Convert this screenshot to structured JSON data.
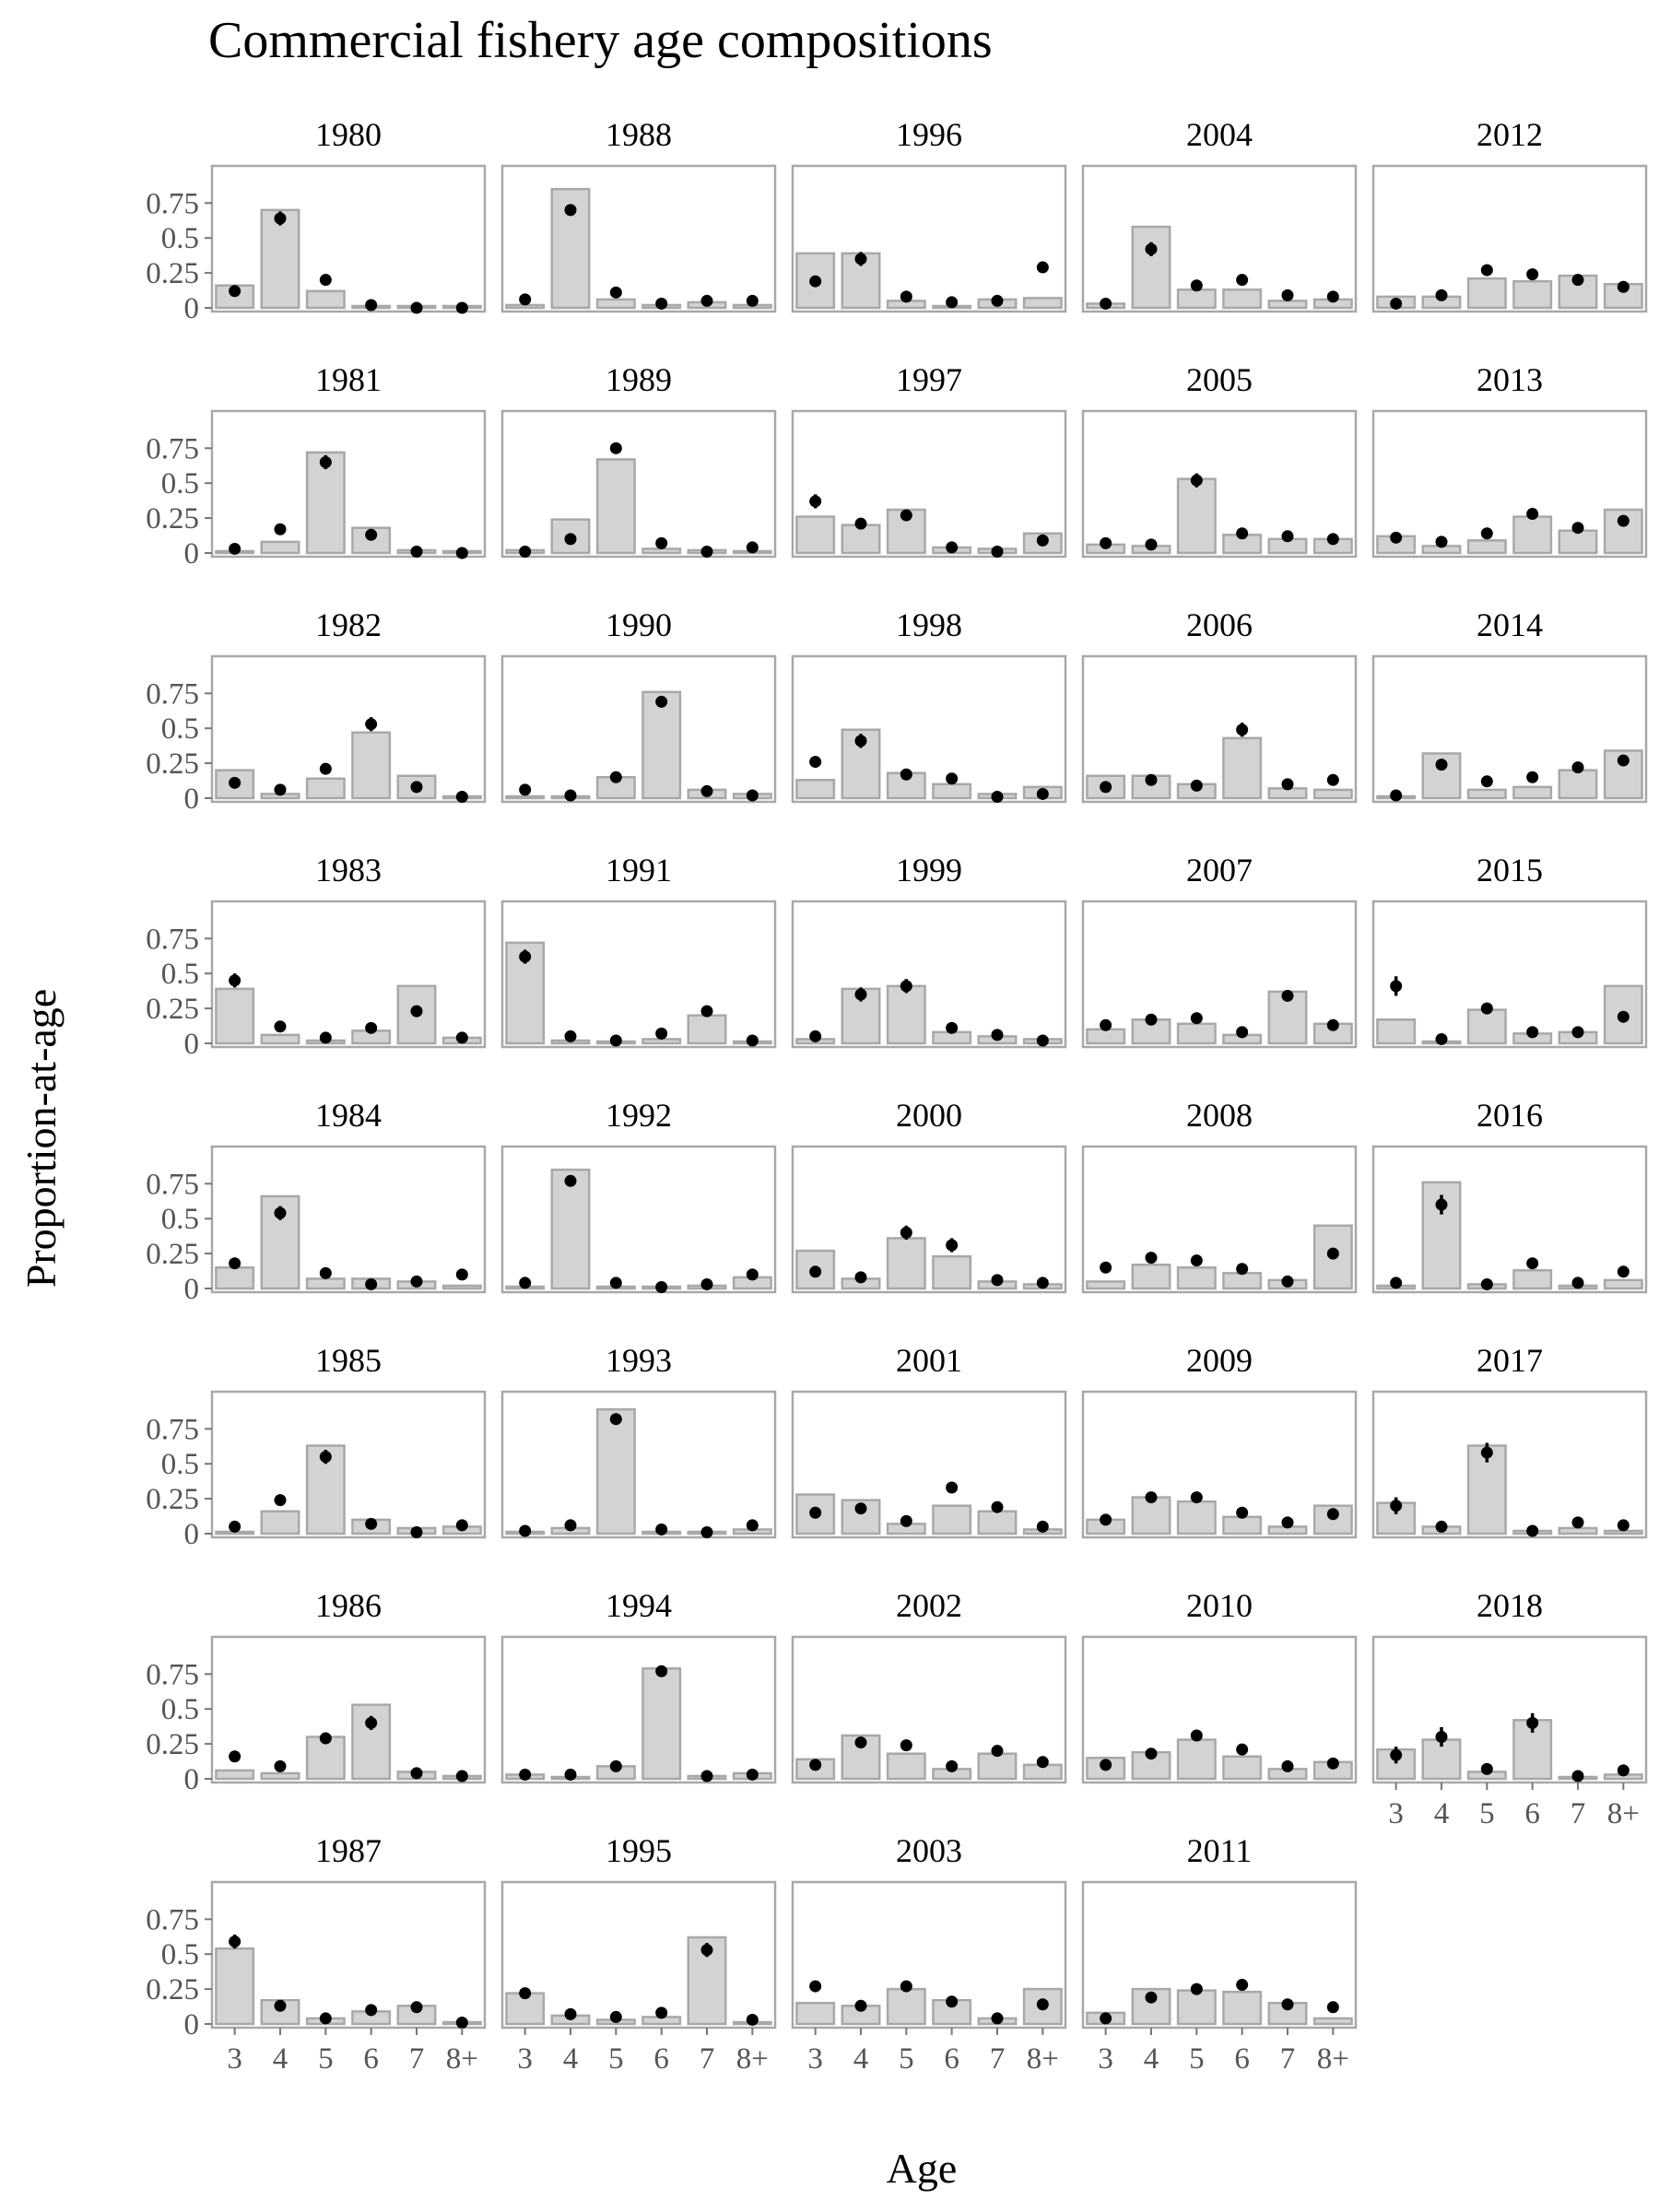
{
  "colors": {
    "bar_fill": "#d3d3d3",
    "bar_stroke": "#a8a8a8",
    "point": "#000000",
    "panel_border": "#a8a8a8"
  },
  "chart_data": {
    "type": "bar",
    "title": "Commercial fishery age compositions",
    "xlabel": "Age",
    "ylabel": "Proportion-at-age",
    "categories": [
      "3",
      "4",
      "5",
      "6",
      "7",
      "8+"
    ],
    "ylim": [
      0,
      0.95
    ],
    "yticks": [
      0,
      0.25,
      0.5,
      0.75
    ],
    "ytick_labels": [
      "0",
      "0.25",
      "0.5",
      "0.75"
    ],
    "grid": false,
    "series_description": [
      "bars",
      "points with error bars"
    ],
    "panels": [
      {
        "year": "1980",
        "bars": [
          0.16,
          0.7,
          0.12,
          0.01,
          0.01,
          0.01
        ],
        "points": [
          0.12,
          0.64,
          0.2,
          0.02,
          0.0,
          0.0
        ],
        "err": [
          0.01,
          0.04,
          0.03,
          0.01,
          0.0,
          0.0
        ]
      },
      {
        "year": "1981",
        "bars": [
          0.01,
          0.08,
          0.72,
          0.18,
          0.02,
          0.01
        ],
        "points": [
          0.03,
          0.17,
          0.65,
          0.13,
          0.01,
          0.0
        ],
        "err": [
          0.01,
          0.02,
          0.04,
          0.02,
          0.0,
          0.0
        ]
      },
      {
        "year": "1982",
        "bars": [
          0.2,
          0.03,
          0.14,
          0.47,
          0.16,
          0.01
        ],
        "points": [
          0.11,
          0.06,
          0.21,
          0.53,
          0.08,
          0.01
        ],
        "err": [
          0.01,
          0.01,
          0.03,
          0.04,
          0.01,
          0.0
        ]
      },
      {
        "year": "1983",
        "bars": [
          0.39,
          0.06,
          0.02,
          0.09,
          0.41,
          0.04
        ],
        "points": [
          0.45,
          0.12,
          0.04,
          0.11,
          0.23,
          0.04
        ],
        "err": [
          0.04,
          0.02,
          0.01,
          0.01,
          0.03,
          0.01
        ]
      },
      {
        "year": "1984",
        "bars": [
          0.15,
          0.66,
          0.07,
          0.07,
          0.05,
          0.02
        ],
        "points": [
          0.18,
          0.54,
          0.11,
          0.03,
          0.05,
          0.1
        ],
        "err": [
          0.02,
          0.04,
          0.01,
          0.01,
          0.01,
          0.01
        ]
      },
      {
        "year": "1985",
        "bars": [
          0.01,
          0.16,
          0.63,
          0.1,
          0.04,
          0.05
        ],
        "points": [
          0.05,
          0.24,
          0.55,
          0.07,
          0.01,
          0.06
        ],
        "err": [
          0.01,
          0.03,
          0.04,
          0.01,
          0.0,
          0.01
        ]
      },
      {
        "year": "1986",
        "bars": [
          0.06,
          0.04,
          0.3,
          0.53,
          0.05,
          0.02
        ],
        "points": [
          0.16,
          0.09,
          0.29,
          0.4,
          0.04,
          0.02
        ],
        "err": [
          0.02,
          0.01,
          0.03,
          0.04,
          0.01,
          0.0
        ]
      },
      {
        "year": "1987",
        "bars": [
          0.54,
          0.17,
          0.04,
          0.09,
          0.13,
          0.01
        ],
        "points": [
          0.59,
          0.13,
          0.04,
          0.1,
          0.12,
          0.01
        ],
        "err": [
          0.04,
          0.02,
          0.01,
          0.01,
          0.01,
          0.0
        ]
      },
      {
        "year": "1988",
        "bars": [
          0.02,
          0.85,
          0.06,
          0.02,
          0.04,
          0.02
        ],
        "points": [
          0.06,
          0.7,
          0.11,
          0.03,
          0.05,
          0.05
        ],
        "err": [
          0.01,
          0.03,
          0.01,
          0.0,
          0.01,
          0.01
        ]
      },
      {
        "year": "1989",
        "bars": [
          0.02,
          0.24,
          0.67,
          0.03,
          0.02,
          0.01
        ],
        "points": [
          0.01,
          0.1,
          0.75,
          0.07,
          0.01,
          0.04
        ],
        "err": [
          0.0,
          0.01,
          0.03,
          0.01,
          0.0,
          0.01
        ]
      },
      {
        "year": "1990",
        "bars": [
          0.01,
          0.01,
          0.15,
          0.76,
          0.06,
          0.03
        ],
        "points": [
          0.06,
          0.02,
          0.15,
          0.69,
          0.05,
          0.02
        ],
        "err": [
          0.01,
          0.0,
          0.02,
          0.03,
          0.01,
          0.0
        ]
      },
      {
        "year": "1991",
        "bars": [
          0.72,
          0.02,
          0.01,
          0.03,
          0.2,
          0.01
        ],
        "points": [
          0.62,
          0.05,
          0.02,
          0.07,
          0.23,
          0.02
        ],
        "err": [
          0.04,
          0.01,
          0.0,
          0.01,
          0.02,
          0.0
        ]
      },
      {
        "year": "1992",
        "bars": [
          0.01,
          0.85,
          0.01,
          0.01,
          0.02,
          0.08
        ],
        "points": [
          0.04,
          0.77,
          0.04,
          0.01,
          0.03,
          0.1
        ],
        "err": [
          0.01,
          0.02,
          0.01,
          0.0,
          0.0,
          0.01
        ]
      },
      {
        "year": "1993",
        "bars": [
          0.01,
          0.04,
          0.89,
          0.01,
          0.01,
          0.03
        ],
        "points": [
          0.02,
          0.06,
          0.82,
          0.03,
          0.01,
          0.06
        ],
        "err": [
          0.0,
          0.01,
          0.02,
          0.0,
          0.0,
          0.01
        ]
      },
      {
        "year": "1994",
        "bars": [
          0.03,
          0.01,
          0.09,
          0.79,
          0.02,
          0.04
        ],
        "points": [
          0.03,
          0.03,
          0.09,
          0.77,
          0.02,
          0.03
        ],
        "err": [
          0.0,
          0.0,
          0.01,
          0.02,
          0.0,
          0.0
        ]
      },
      {
        "year": "1995",
        "bars": [
          0.22,
          0.06,
          0.03,
          0.05,
          0.62,
          0.01
        ],
        "points": [
          0.22,
          0.07,
          0.05,
          0.08,
          0.53,
          0.03
        ],
        "err": [
          0.03,
          0.01,
          0.01,
          0.01,
          0.04,
          0.0
        ]
      },
      {
        "year": "1996",
        "bars": [
          0.39,
          0.39,
          0.05,
          0.01,
          0.06,
          0.07
        ],
        "points": [
          0.19,
          0.35,
          0.08,
          0.04,
          0.05,
          0.29
        ],
        "err": [
          0.03,
          0.04,
          0.01,
          0.01,
          0.01,
          0.03
        ]
      },
      {
        "year": "1997",
        "bars": [
          0.26,
          0.2,
          0.31,
          0.04,
          0.03,
          0.14
        ],
        "points": [
          0.37,
          0.21,
          0.27,
          0.04,
          0.01,
          0.09
        ],
        "err": [
          0.04,
          0.02,
          0.03,
          0.01,
          0.0,
          0.01
        ]
      },
      {
        "year": "1998",
        "bars": [
          0.13,
          0.49,
          0.18,
          0.1,
          0.03,
          0.08
        ],
        "points": [
          0.26,
          0.41,
          0.17,
          0.14,
          0.01,
          0.03
        ],
        "err": [
          0.03,
          0.04,
          0.01,
          0.01,
          0.0,
          0.0
        ]
      },
      {
        "year": "1999",
        "bars": [
          0.03,
          0.39,
          0.41,
          0.08,
          0.05,
          0.03
        ],
        "points": [
          0.05,
          0.35,
          0.41,
          0.11,
          0.06,
          0.02
        ],
        "err": [
          0.01,
          0.04,
          0.04,
          0.01,
          0.01,
          0.0
        ]
      },
      {
        "year": "2000",
        "bars": [
          0.27,
          0.07,
          0.36,
          0.23,
          0.05,
          0.03
        ],
        "points": [
          0.12,
          0.08,
          0.4,
          0.31,
          0.06,
          0.04
        ],
        "err": [
          0.02,
          0.01,
          0.04,
          0.04,
          0.01,
          0.01
        ]
      },
      {
        "year": "2001",
        "bars": [
          0.28,
          0.24,
          0.07,
          0.2,
          0.16,
          0.03
        ],
        "points": [
          0.15,
          0.18,
          0.09,
          0.33,
          0.19,
          0.05
        ],
        "err": [
          0.02,
          0.02,
          0.01,
          0.03,
          0.02,
          0.01
        ]
      },
      {
        "year": "2002",
        "bars": [
          0.14,
          0.31,
          0.18,
          0.07,
          0.18,
          0.1
        ],
        "points": [
          0.1,
          0.26,
          0.24,
          0.09,
          0.2,
          0.12
        ],
        "err": [
          0.01,
          0.03,
          0.03,
          0.01,
          0.02,
          0.01
        ]
      },
      {
        "year": "2003",
        "bars": [
          0.15,
          0.13,
          0.25,
          0.17,
          0.04,
          0.25
        ],
        "points": [
          0.27,
          0.13,
          0.27,
          0.16,
          0.04,
          0.14
        ],
        "err": [
          0.03,
          0.01,
          0.03,
          0.01,
          0.0,
          0.02
        ]
      },
      {
        "year": "2004",
        "bars": [
          0.03,
          0.58,
          0.13,
          0.13,
          0.05,
          0.06
        ],
        "points": [
          0.03,
          0.42,
          0.16,
          0.2,
          0.09,
          0.08
        ],
        "err": [
          0.0,
          0.04,
          0.01,
          0.01,
          0.01,
          0.01
        ]
      },
      {
        "year": "2005",
        "bars": [
          0.06,
          0.05,
          0.53,
          0.13,
          0.1,
          0.1
        ],
        "points": [
          0.07,
          0.06,
          0.52,
          0.14,
          0.12,
          0.1
        ],
        "err": [
          0.01,
          0.01,
          0.04,
          0.01,
          0.01,
          0.01
        ]
      },
      {
        "year": "2006",
        "bars": [
          0.16,
          0.16,
          0.1,
          0.43,
          0.07,
          0.06
        ],
        "points": [
          0.08,
          0.13,
          0.09,
          0.49,
          0.1,
          0.13
        ],
        "err": [
          0.01,
          0.01,
          0.01,
          0.04,
          0.01,
          0.01
        ]
      },
      {
        "year": "2007",
        "bars": [
          0.1,
          0.17,
          0.14,
          0.06,
          0.37,
          0.14
        ],
        "points": [
          0.13,
          0.17,
          0.18,
          0.08,
          0.34,
          0.13
        ],
        "err": [
          0.01,
          0.01,
          0.01,
          0.01,
          0.03,
          0.01
        ]
      },
      {
        "year": "2008",
        "bars": [
          0.05,
          0.17,
          0.15,
          0.11,
          0.06,
          0.45
        ],
        "points": [
          0.15,
          0.22,
          0.2,
          0.14,
          0.05,
          0.25
        ],
        "err": [
          0.01,
          0.02,
          0.02,
          0.01,
          0.01,
          0.02
        ]
      },
      {
        "year": "2009",
        "bars": [
          0.1,
          0.26,
          0.23,
          0.12,
          0.05,
          0.2
        ],
        "points": [
          0.1,
          0.26,
          0.26,
          0.15,
          0.08,
          0.14
        ],
        "err": [
          0.01,
          0.03,
          0.03,
          0.01,
          0.01,
          0.01
        ]
      },
      {
        "year": "2010",
        "bars": [
          0.15,
          0.19,
          0.28,
          0.16,
          0.07,
          0.12
        ],
        "points": [
          0.1,
          0.18,
          0.31,
          0.21,
          0.09,
          0.11
        ],
        "err": [
          0.01,
          0.02,
          0.03,
          0.02,
          0.01,
          0.01
        ]
      },
      {
        "year": "2011",
        "bars": [
          0.08,
          0.25,
          0.24,
          0.23,
          0.15,
          0.04
        ],
        "points": [
          0.04,
          0.19,
          0.25,
          0.28,
          0.14,
          0.12
        ],
        "err": [
          0.0,
          0.02,
          0.03,
          0.03,
          0.01,
          0.01
        ]
      },
      {
        "year": "2012",
        "bars": [
          0.08,
          0.08,
          0.21,
          0.19,
          0.23,
          0.17
        ],
        "points": [
          0.03,
          0.09,
          0.27,
          0.24,
          0.2,
          0.15
        ],
        "err": [
          0.0,
          0.01,
          0.03,
          0.03,
          0.02,
          0.01
        ]
      },
      {
        "year": "2013",
        "bars": [
          0.12,
          0.05,
          0.09,
          0.26,
          0.16,
          0.31
        ],
        "points": [
          0.11,
          0.08,
          0.14,
          0.28,
          0.18,
          0.23
        ],
        "err": [
          0.01,
          0.01,
          0.01,
          0.03,
          0.01,
          0.02
        ]
      },
      {
        "year": "2014",
        "bars": [
          0.01,
          0.32,
          0.06,
          0.08,
          0.2,
          0.34
        ],
        "points": [
          0.02,
          0.24,
          0.12,
          0.15,
          0.22,
          0.27
        ],
        "err": [
          0.0,
          0.03,
          0.01,
          0.01,
          0.02,
          0.03
        ]
      },
      {
        "year": "2015",
        "bars": [
          0.17,
          0.01,
          0.24,
          0.07,
          0.08,
          0.41
        ],
        "points": [
          0.41,
          0.03,
          0.25,
          0.08,
          0.08,
          0.19
        ],
        "err": [
          0.06,
          0.0,
          0.03,
          0.01,
          0.01,
          0.02
        ]
      },
      {
        "year": "2016",
        "bars": [
          0.02,
          0.76,
          0.03,
          0.13,
          0.02,
          0.06
        ],
        "points": [
          0.04,
          0.6,
          0.03,
          0.18,
          0.04,
          0.12
        ],
        "err": [
          0.0,
          0.06,
          0.0,
          0.02,
          0.0,
          0.01
        ]
      },
      {
        "year": "2017",
        "bars": [
          0.22,
          0.05,
          0.63,
          0.02,
          0.04,
          0.02
        ],
        "points": [
          0.2,
          0.05,
          0.58,
          0.02,
          0.08,
          0.06
        ],
        "err": [
          0.05,
          0.01,
          0.06,
          0.0,
          0.01,
          0.01
        ]
      },
      {
        "year": "2018",
        "bars": [
          0.21,
          0.28,
          0.05,
          0.42,
          0.01,
          0.03
        ],
        "points": [
          0.17,
          0.3,
          0.07,
          0.4,
          0.02,
          0.06
        ],
        "err": [
          0.05,
          0.06,
          0.01,
          0.06,
          0.0,
          0.01
        ]
      }
    ]
  }
}
